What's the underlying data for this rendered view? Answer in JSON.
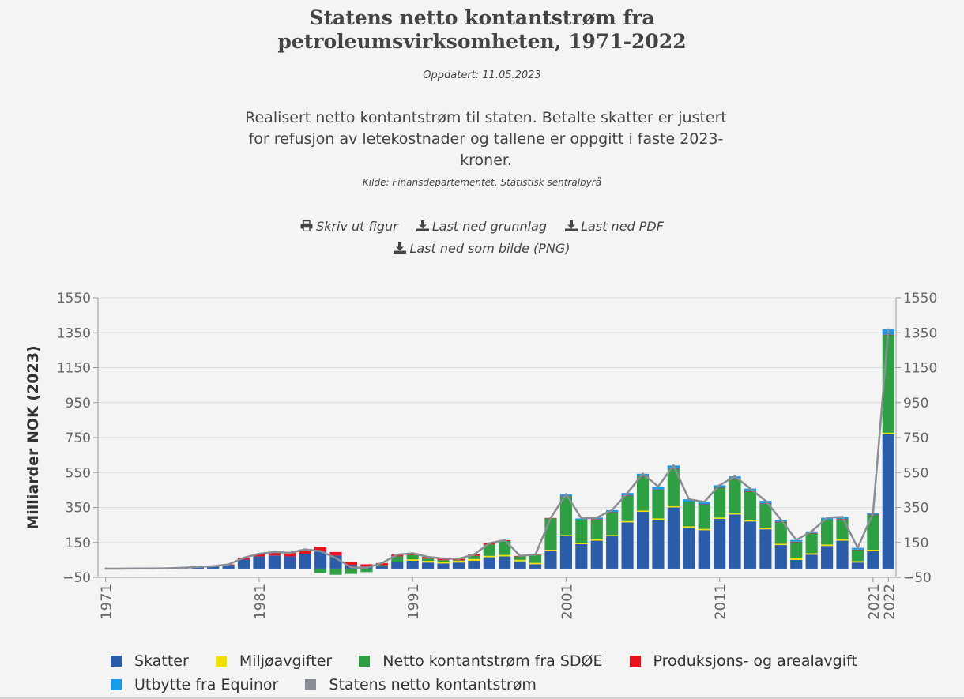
{
  "header": {
    "title_line1": "Statens netto kontantstrøm fra",
    "title_line2": "petroleumsvirksomheten, 1971-2022",
    "updated": "Oppdatert: 11.05.2023",
    "description": "Realisert netto kontantstrøm til staten. Betalte skatter er justert for refusjon av letekostnader og tallene er oppgitt i faste 2023-kroner.",
    "source": "Kilde: Finansdepartementet, Statistisk sentralbyrå"
  },
  "actions": {
    "print": "Skriv ut figur",
    "download_data": "Last ned grunnlag",
    "download_pdf": "Last ned PDF",
    "download_png": "Last ned som bilde (PNG)"
  },
  "colors": {
    "skatter": "#2a5caa",
    "miljo": "#f2e200",
    "sdoe": "#2ea043",
    "produksjon": "#e8131c",
    "utbytte": "#1a9be6",
    "netto": "#888e93"
  },
  "chart_data": {
    "type": "bar",
    "stacked": true,
    "title": "",
    "xlabel": "",
    "ylabel": "Milliarder NOK (2023)",
    "ylim": [
      -50,
      1550
    ],
    "yticks": [
      -50,
      150,
      350,
      550,
      750,
      950,
      1150,
      1350,
      1550
    ],
    "ytick_labels": [
      "−50",
      "150",
      "350",
      "550",
      "750",
      "950",
      "1150",
      "1350",
      "1550"
    ],
    "xtick_labels": [
      "1971",
      "1981",
      "1991",
      "2001",
      "2011",
      "2021",
      "2022"
    ],
    "grid": true,
    "legend_position": "bottom",
    "x": [
      1971,
      1972,
      1973,
      1974,
      1975,
      1976,
      1977,
      1978,
      1979,
      1980,
      1981,
      1982,
      1983,
      1984,
      1985,
      1986,
      1987,
      1988,
      1989,
      1990,
      1991,
      1992,
      1993,
      1994,
      1995,
      1996,
      1997,
      1998,
      1999,
      2000,
      2001,
      2002,
      2003,
      2004,
      2005,
      2006,
      2007,
      2008,
      2009,
      2010,
      2011,
      2012,
      2013,
      2014,
      2015,
      2016,
      2017,
      2018,
      2019,
      2020,
      2021,
      2022
    ],
    "series": [
      {
        "name": "Skatter",
        "color_key": "skatter",
        "values": [
          0,
          0,
          1,
          1,
          2,
          5,
          10,
          12,
          20,
          52,
          70,
          75,
          70,
          85,
          100,
          75,
          22,
          12,
          15,
          40,
          45,
          35,
          30,
          35,
          45,
          65,
          70,
          42,
          25,
          100,
          185,
          140,
          160,
          185,
          265,
          325,
          280,
          350,
          235,
          220,
          285,
          310,
          270,
          225,
          135,
          50,
          80,
          130,
          160,
          35,
          100,
          770
        ]
      },
      {
        "name": "Miljøavgifter",
        "color_key": "miljo",
        "values": [
          0,
          0,
          0,
          0,
          0,
          0,
          0,
          0,
          0,
          0,
          0,
          0,
          0,
          0,
          0,
          0,
          0,
          0,
          0,
          0,
          8,
          10,
          10,
          10,
          10,
          8,
          8,
          8,
          8,
          8,
          7,
          7,
          7,
          7,
          7,
          7,
          7,
          7,
          7,
          7,
          7,
          7,
          7,
          7,
          7,
          8,
          8,
          8,
          8,
          8,
          8,
          8
        ]
      },
      {
        "name": "Netto kontantstrøm fra SDØE",
        "color_key": "sdoe",
        "values": [
          0,
          0,
          0,
          0,
          0,
          0,
          0,
          0,
          0,
          0,
          0,
          0,
          0,
          0,
          -25,
          -35,
          -30,
          -20,
          5,
          30,
          25,
          12,
          8,
          3,
          18,
          65,
          80,
          20,
          45,
          180,
          220,
          130,
          115,
          130,
          145,
          195,
          165,
          215,
          140,
          140,
          170,
          195,
          165,
          140,
          125,
          95,
          115,
          140,
          115,
          65,
          200,
          560
        ]
      },
      {
        "name": "Produksjons- og arealavgift",
        "color_key": "produksjon",
        "values": [
          0,
          0,
          0,
          0,
          0,
          0,
          0,
          2,
          4,
          10,
          15,
          20,
          20,
          25,
          25,
          20,
          15,
          13,
          12,
          10,
          10,
          10,
          10,
          8,
          8,
          7,
          5,
          3,
          2,
          2,
          2,
          2,
          1,
          1,
          1,
          1,
          1,
          1,
          1,
          1,
          1,
          1,
          1,
          1,
          1,
          1,
          1,
          1,
          1,
          1,
          1,
          1
        ]
      },
      {
        "name": "Utbytte fra Equinor",
        "color_key": "utbytte",
        "values": [
          0,
          0,
          0,
          0,
          0,
          0,
          0,
          0,
          0,
          0,
          0,
          0,
          0,
          0,
          0,
          0,
          0,
          0,
          0,
          0,
          0,
          0,
          0,
          0,
          0,
          0,
          0,
          0,
          0,
          0,
          12,
          8,
          9,
          12,
          15,
          15,
          17,
          17,
          14,
          14,
          14,
          15,
          15,
          15,
          12,
          10,
          9,
          12,
          12,
          10,
          8,
          30
        ]
      },
      {
        "name": "Statens netto kontantstrøm",
        "color_key": "netto",
        "kind": "line",
        "values": [
          0,
          0,
          1,
          1,
          2,
          5,
          10,
          14,
          24,
          62,
          85,
          95,
          90,
          110,
          100,
          60,
          7,
          5,
          32,
          80,
          88,
          67,
          58,
          56,
          81,
          145,
          163,
          73,
          80,
          290,
          426,
          287,
          292,
          335,
          433,
          543,
          470,
          590,
          397,
          382,
          477,
          528,
          458,
          388,
          280,
          164,
          213,
          291,
          296,
          119,
          317,
          1369
        ]
      }
    ]
  }
}
